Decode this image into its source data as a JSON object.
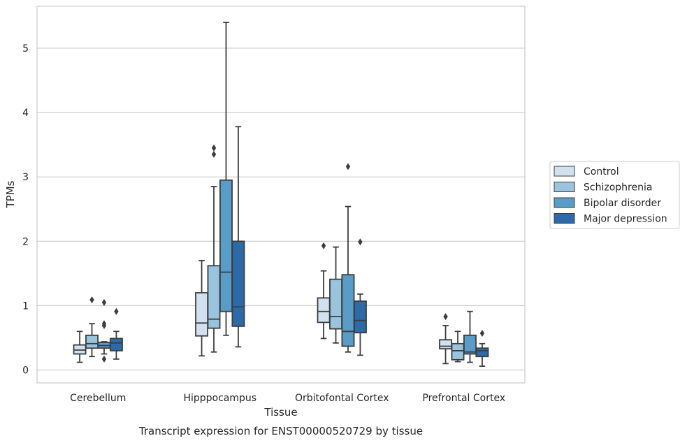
{
  "chart_data": {
    "type": "box",
    "caption": "Transcript expression for ENST00000520729 by tissue",
    "xlabel": "Tissue",
    "ylabel": "TPMs",
    "ylim": [
      -0.2,
      5.65
    ],
    "yticks": [
      0,
      1,
      2,
      3,
      4,
      5
    ],
    "grid": "horizontal",
    "legend_position": "right",
    "categories": [
      "Cerebellum",
      "Hipppocampus",
      "Orbitofontal Cortex",
      "Prefrontal Cortex"
    ],
    "series": [
      {
        "name": "Control",
        "color": "#d1e1f0",
        "boxes": [
          {
            "whislo": 0.12,
            "q1": 0.25,
            "med": 0.31,
            "q3": 0.39,
            "whishi": 0.6,
            "fliers": []
          },
          {
            "whislo": 0.22,
            "q1": 0.53,
            "med": 0.73,
            "q3": 1.2,
            "whishi": 1.7,
            "fliers": []
          },
          {
            "whislo": 0.49,
            "q1": 0.74,
            "med": 0.91,
            "q3": 1.12,
            "whishi": 1.54,
            "fliers": [
              1.93
            ]
          },
          {
            "whislo": 0.1,
            "q1": 0.33,
            "med": 0.37,
            "q3": 0.47,
            "whishi": 0.69,
            "fliers": [
              0.83
            ]
          }
        ]
      },
      {
        "name": "Schizophrenia",
        "color": "#9ac3de",
        "boxes": [
          {
            "whislo": 0.21,
            "q1": 0.34,
            "med": 0.41,
            "q3": 0.54,
            "whishi": 0.72,
            "fliers": [
              1.09
            ]
          },
          {
            "whislo": 0.28,
            "q1": 0.65,
            "med": 0.79,
            "q3": 1.62,
            "whishi": 2.85,
            "fliers": [
              3.35,
              3.45
            ]
          },
          {
            "whislo": 0.42,
            "q1": 0.64,
            "med": 0.83,
            "q3": 1.41,
            "whishi": 1.91,
            "fliers": []
          },
          {
            "whislo": 0.13,
            "q1": 0.16,
            "med": 0.3,
            "q3": 0.41,
            "whishi": 0.6,
            "fliers": []
          }
        ]
      },
      {
        "name": "Bipolar disorder",
        "color": "#5a9cc8",
        "boxes": [
          {
            "whislo": 0.25,
            "q1": 0.34,
            "med": 0.38,
            "q3": 0.43,
            "whishi": 0.44,
            "fliers": [
              0.17,
              0.69,
              0.72,
              1.05
            ]
          },
          {
            "whislo": 0.54,
            "q1": 0.91,
            "med": 1.52,
            "q3": 2.95,
            "whishi": 5.4,
            "fliers": []
          },
          {
            "whislo": 0.28,
            "q1": 0.37,
            "med": 0.6,
            "q3": 1.48,
            "whishi": 2.54,
            "fliers": [
              3.16
            ]
          },
          {
            "whislo": 0.12,
            "q1": 0.25,
            "med": 0.28,
            "q3": 0.54,
            "whishi": 0.91,
            "fliers": []
          }
        ]
      },
      {
        "name": "Major depression",
        "color": "#2c6aa8",
        "boxes": [
          {
            "whislo": 0.17,
            "q1": 0.3,
            "med": 0.42,
            "q3": 0.49,
            "whishi": 0.6,
            "fliers": [
              0.91
            ]
          },
          {
            "whislo": 0.36,
            "q1": 0.68,
            "med": 0.98,
            "q3": 2.0,
            "whishi": 3.78,
            "fliers": []
          },
          {
            "whislo": 0.23,
            "q1": 0.58,
            "med": 0.77,
            "q3": 1.07,
            "whishi": 1.18,
            "fliers": [
              1.99
            ]
          },
          {
            "whislo": 0.06,
            "q1": 0.21,
            "med": 0.3,
            "q3": 0.34,
            "whishi": 0.41,
            "fliers": [
              0.57
            ]
          }
        ]
      }
    ]
  }
}
